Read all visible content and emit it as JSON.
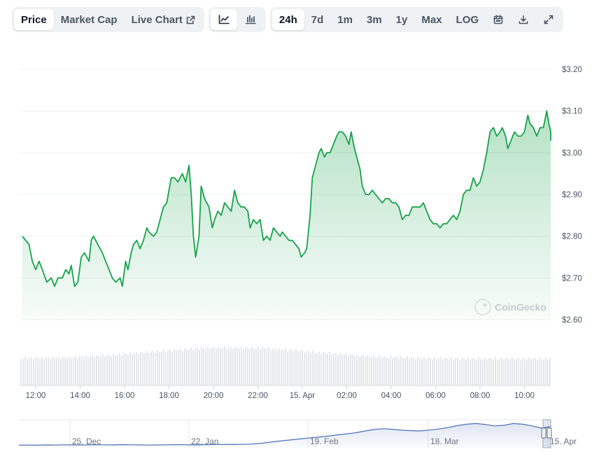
{
  "toolbar": {
    "metric_tabs": [
      "Price",
      "Market Cap",
      "Live Chart"
    ],
    "active_metric": "Price",
    "chart_type_buttons": [
      "line-chart-icon",
      "candlestick-chart-icon"
    ],
    "active_chart_type": "line-chart-icon",
    "ranges": [
      "24h",
      "7d",
      "1m",
      "3m",
      "1y",
      "Max",
      "LOG"
    ],
    "active_range": "24h",
    "action_icons": [
      "calendar-icon",
      "download-icon",
      "expand-icon"
    ]
  },
  "watermark": "CoinGecko",
  "colors": {
    "line": "#16a34a",
    "fill": "#16a34a",
    "volume": "#e5e7eb",
    "navigator_line": "#4a6fb5",
    "grid": "#eef0f3"
  },
  "chart_data": {
    "type": "line",
    "y_axis": {
      "ticks": [
        "$3.20",
        "$3.10",
        "$3.00",
        "$2.90",
        "$2.80",
        "$2.70",
        "$2.60"
      ],
      "values": [
        3.2,
        3.1,
        3.0,
        2.9,
        2.8,
        2.7,
        2.6
      ],
      "range": [
        2.6,
        3.2
      ],
      "position": "right"
    },
    "x_axis": {
      "ticks": [
        "12:00",
        "14:00",
        "16:00",
        "18:00",
        "20:00",
        "22:00",
        "15. Apr",
        "02:00",
        "04:00",
        "06:00",
        "08:00",
        "10:00"
      ],
      "range_hours": [
        11.4,
        35.3
      ]
    },
    "series": [
      {
        "points": [
          [
            11.4,
            2.8
          ],
          [
            11.55,
            2.79
          ],
          [
            11.7,
            2.78
          ],
          [
            11.85,
            2.74
          ],
          [
            12.0,
            2.72
          ],
          [
            12.15,
            2.74
          ],
          [
            12.3,
            2.72
          ],
          [
            12.5,
            2.69
          ],
          [
            12.7,
            2.7
          ],
          [
            12.85,
            2.68
          ],
          [
            13.0,
            2.7
          ],
          [
            13.2,
            2.7
          ],
          [
            13.35,
            2.72
          ],
          [
            13.5,
            2.71
          ],
          [
            13.6,
            2.73
          ],
          [
            13.75,
            2.68
          ],
          [
            13.9,
            2.69
          ],
          [
            14.05,
            2.75
          ],
          [
            14.2,
            2.76
          ],
          [
            14.4,
            2.74
          ],
          [
            14.5,
            2.79
          ],
          [
            14.6,
            2.8
          ],
          [
            14.8,
            2.78
          ],
          [
            15.0,
            2.76
          ],
          [
            15.15,
            2.74
          ],
          [
            15.3,
            2.72
          ],
          [
            15.45,
            2.7
          ],
          [
            15.6,
            2.69
          ],
          [
            15.8,
            2.7
          ],
          [
            15.9,
            2.68
          ],
          [
            16.05,
            2.74
          ],
          [
            16.15,
            2.72
          ],
          [
            16.3,
            2.76
          ],
          [
            16.4,
            2.78
          ],
          [
            16.55,
            2.79
          ],
          [
            16.7,
            2.77
          ],
          [
            16.85,
            2.79
          ],
          [
            17.0,
            2.82
          ],
          [
            17.1,
            2.81
          ],
          [
            17.3,
            2.8
          ],
          [
            17.45,
            2.81
          ],
          [
            17.6,
            2.84
          ],
          [
            17.75,
            2.87
          ],
          [
            17.9,
            2.88
          ],
          [
            18.0,
            2.91
          ],
          [
            18.1,
            2.94
          ],
          [
            18.25,
            2.94
          ],
          [
            18.4,
            2.93
          ],
          [
            18.5,
            2.94
          ],
          [
            18.6,
            2.95
          ],
          [
            18.75,
            2.93
          ],
          [
            18.9,
            2.97
          ],
          [
            19.0,
            2.9
          ],
          [
            19.1,
            2.8
          ],
          [
            19.2,
            2.75
          ],
          [
            19.35,
            2.8
          ],
          [
            19.45,
            2.92
          ],
          [
            19.6,
            2.89
          ],
          [
            19.8,
            2.87
          ],
          [
            19.95,
            2.82
          ],
          [
            20.05,
            2.84
          ],
          [
            20.2,
            2.86
          ],
          [
            20.35,
            2.85
          ],
          [
            20.5,
            2.88
          ],
          [
            20.65,
            2.87
          ],
          [
            20.8,
            2.86
          ],
          [
            20.95,
            2.91
          ],
          [
            21.1,
            2.88
          ],
          [
            21.25,
            2.87
          ],
          [
            21.4,
            2.87
          ],
          [
            21.55,
            2.86
          ],
          [
            21.65,
            2.82
          ],
          [
            21.8,
            2.84
          ],
          [
            21.95,
            2.83
          ],
          [
            22.1,
            2.84
          ],
          [
            22.25,
            2.79
          ],
          [
            22.4,
            2.8
          ],
          [
            22.55,
            2.79
          ],
          [
            22.7,
            2.82
          ],
          [
            22.85,
            2.81
          ],
          [
            23.0,
            2.8
          ],
          [
            23.1,
            2.81
          ],
          [
            23.25,
            2.8
          ],
          [
            23.4,
            2.79
          ],
          [
            23.55,
            2.79
          ],
          [
            23.7,
            2.78
          ],
          [
            23.85,
            2.77
          ],
          [
            23.95,
            2.75
          ],
          [
            24.1,
            2.76
          ],
          [
            24.2,
            2.77
          ],
          [
            24.35,
            2.85
          ],
          [
            24.45,
            2.94
          ],
          [
            24.6,
            2.97
          ],
          [
            24.75,
            3.0
          ],
          [
            24.85,
            3.01
          ],
          [
            25.0,
            2.99
          ],
          [
            25.1,
            3.0
          ],
          [
            25.25,
            3.0
          ],
          [
            25.4,
            3.02
          ],
          [
            25.55,
            3.04
          ],
          [
            25.65,
            3.05
          ],
          [
            25.8,
            3.05
          ],
          [
            25.95,
            3.04
          ],
          [
            26.1,
            3.02
          ],
          [
            26.2,
            3.05
          ],
          [
            26.35,
            3.01
          ],
          [
            26.5,
            2.98
          ],
          [
            26.6,
            2.96
          ],
          [
            26.7,
            2.92
          ],
          [
            26.85,
            2.9
          ],
          [
            27.0,
            2.9
          ],
          [
            27.15,
            2.91
          ],
          [
            27.3,
            2.9
          ],
          [
            27.45,
            2.89
          ],
          [
            27.6,
            2.88
          ],
          [
            27.75,
            2.89
          ],
          [
            27.9,
            2.89
          ],
          [
            28.05,
            2.88
          ],
          [
            28.2,
            2.88
          ],
          [
            28.35,
            2.87
          ],
          [
            28.5,
            2.84
          ],
          [
            28.65,
            2.85
          ],
          [
            28.8,
            2.85
          ],
          [
            28.95,
            2.87
          ],
          [
            29.1,
            2.87
          ],
          [
            29.3,
            2.87
          ],
          [
            29.45,
            2.88
          ],
          [
            29.6,
            2.86
          ],
          [
            29.75,
            2.84
          ],
          [
            29.9,
            2.83
          ],
          [
            30.05,
            2.83
          ],
          [
            30.2,
            2.82
          ],
          [
            30.35,
            2.83
          ],
          [
            30.5,
            2.83
          ],
          [
            30.65,
            2.84
          ],
          [
            30.8,
            2.85
          ],
          [
            30.95,
            2.84
          ],
          [
            31.1,
            2.86
          ],
          [
            31.25,
            2.9
          ],
          [
            31.4,
            2.91
          ],
          [
            31.55,
            2.91
          ],
          [
            31.7,
            2.94
          ],
          [
            31.85,
            2.92
          ],
          [
            32.0,
            2.93
          ],
          [
            32.15,
            2.96
          ],
          [
            32.3,
            3.0
          ],
          [
            32.45,
            3.05
          ],
          [
            32.6,
            3.06
          ],
          [
            32.75,
            3.04
          ],
          [
            32.9,
            3.05
          ],
          [
            33.0,
            3.06
          ],
          [
            33.15,
            3.04
          ],
          [
            33.25,
            3.01
          ],
          [
            33.4,
            3.03
          ],
          [
            33.55,
            3.05
          ],
          [
            33.7,
            3.04
          ],
          [
            33.85,
            3.04
          ],
          [
            34.0,
            3.05
          ],
          [
            34.15,
            3.09
          ],
          [
            34.25,
            3.07
          ],
          [
            34.4,
            3.06
          ],
          [
            34.55,
            3.04
          ],
          [
            34.7,
            3.06
          ],
          [
            34.85,
            3.06
          ],
          [
            35.0,
            3.1
          ],
          [
            35.1,
            3.07
          ],
          [
            35.25,
            3.05
          ],
          [
            35.4,
            3.03
          ],
          [
            35.55,
            3.04
          ],
          [
            35.7,
            3.05
          ],
          [
            35.85,
            3.03
          ],
          [
            36.0,
            3.05
          ],
          [
            36.15,
            3.03
          ],
          [
            36.3,
            3.03
          ]
        ]
      }
    ],
    "volume_bars": true,
    "grid": true,
    "legend": "none",
    "navigator": {
      "ticks": [
        "25. Dec",
        "22. Jan",
        "19. Feb",
        "18. Mar",
        "15. Apr"
      ],
      "series_values": [
        1.48,
        1.49,
        1.48,
        1.5,
        1.49,
        1.51,
        1.5,
        1.49,
        1.52,
        1.51,
        1.5,
        1.52,
        1.51,
        1.5,
        1.49,
        1.5,
        1.51,
        1.52,
        1.51,
        1.5,
        1.52,
        1.53,
        1.54,
        1.53,
        1.54,
        1.56,
        1.62,
        1.7,
        1.78,
        1.85,
        1.92,
        1.99,
        2.05,
        2.12,
        2.2,
        2.28,
        2.36,
        2.48,
        2.6,
        2.66,
        2.62,
        2.55,
        2.52,
        2.5,
        2.56,
        2.64,
        2.74,
        2.88,
        2.98,
        3.03,
        2.96,
        2.86,
        2.9,
        3.03,
        2.98,
        2.86,
        2.7,
        2.82
      ]
    }
  }
}
